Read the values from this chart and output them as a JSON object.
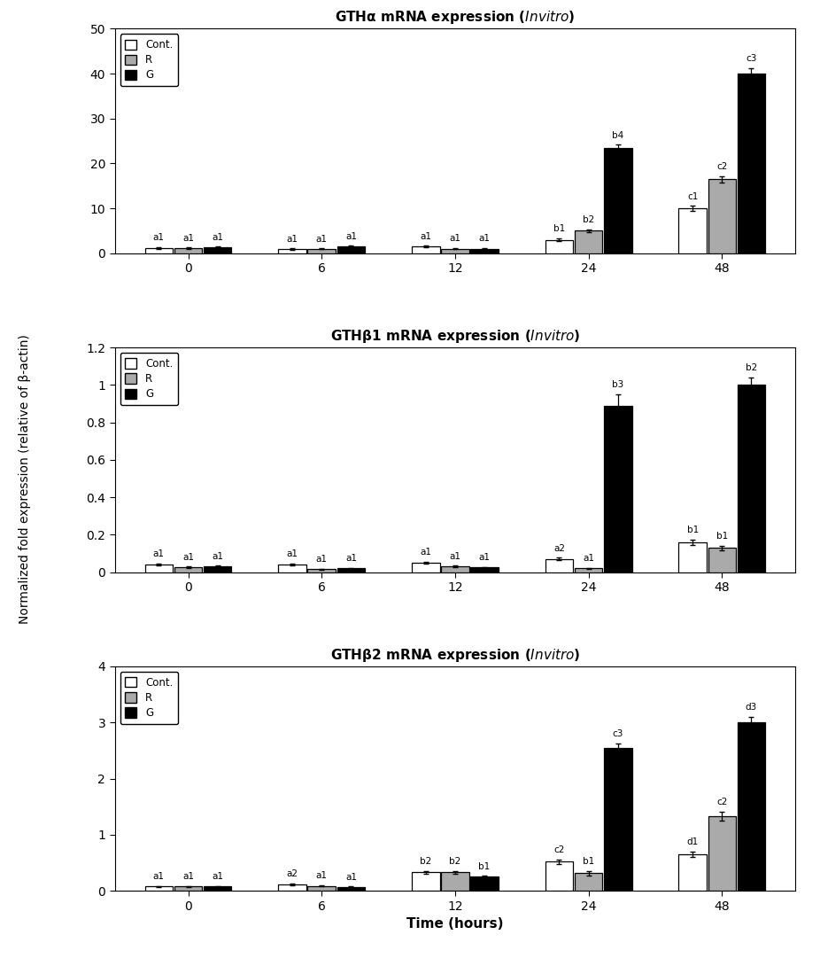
{
  "panels": [
    {
      "title_prefix": "GTHα mRNA expression (",
      "title_suffix": "In vitro",
      "title_end": ")",
      "ylim": [
        0,
        50
      ],
      "yticks": [
        0,
        10,
        20,
        30,
        40,
        50
      ],
      "cont_values": [
        1.2,
        0.9,
        1.5,
        3.0,
        10.0
      ],
      "cont_errors": [
        0.2,
        0.15,
        0.2,
        0.3,
        0.6
      ],
      "r_values": [
        1.1,
        1.0,
        1.0,
        5.0,
        16.5
      ],
      "r_errors": [
        0.15,
        0.1,
        0.15,
        0.35,
        0.7
      ],
      "g_values": [
        1.3,
        1.5,
        1.0,
        23.5,
        40.0
      ],
      "g_errors": [
        0.2,
        0.2,
        0.15,
        0.7,
        1.2
      ],
      "cont_labels": [
        "a1",
        "a1",
        "a1",
        "b1",
        "c1"
      ],
      "r_labels": [
        "a1",
        "a1",
        "a1",
        "b2",
        "c2"
      ],
      "g_labels": [
        "a1",
        "a1",
        "a1",
        "b4",
        "c3"
      ]
    },
    {
      "title_prefix": "GTHβ1 mRNA expression (",
      "title_suffix": "In vitro",
      "title_end": ")",
      "ylim": [
        0,
        1.2
      ],
      "yticks": [
        0,
        0.2,
        0.4,
        0.6,
        0.8,
        1.0,
        1.2
      ],
      "cont_values": [
        0.04,
        0.04,
        0.05,
        0.07,
        0.16
      ],
      "cont_errors": [
        0.005,
        0.005,
        0.006,
        0.008,
        0.015
      ],
      "r_values": [
        0.025,
        0.015,
        0.03,
        0.02,
        0.13
      ],
      "r_errors": [
        0.004,
        0.003,
        0.004,
        0.003,
        0.012
      ],
      "g_values": [
        0.03,
        0.02,
        0.025,
        0.89,
        1.0
      ],
      "g_errors": [
        0.004,
        0.003,
        0.003,
        0.06,
        0.04
      ],
      "cont_labels": [
        "a1",
        "a1",
        "a1",
        "a2",
        "b1"
      ],
      "r_labels": [
        "a1",
        "a1",
        "a1",
        "a1",
        "b1"
      ],
      "g_labels": [
        "a1",
        "a1",
        "a1",
        "b3",
        "b2"
      ]
    },
    {
      "title_prefix": "GTHβ2 mRNA expression (",
      "title_suffix": "In vitro",
      "title_end": ")",
      "ylim": [
        0,
        4
      ],
      "yticks": [
        0,
        1,
        2,
        3,
        4
      ],
      "cont_values": [
        0.08,
        0.12,
        0.33,
        0.52,
        0.65
      ],
      "cont_errors": [
        0.01,
        0.015,
        0.03,
        0.04,
        0.05
      ],
      "r_values": [
        0.08,
        0.09,
        0.33,
        0.32,
        1.33
      ],
      "r_errors": [
        0.01,
        0.012,
        0.03,
        0.04,
        0.08
      ],
      "g_values": [
        0.08,
        0.07,
        0.25,
        2.55,
        3.0
      ],
      "g_errors": [
        0.01,
        0.01,
        0.02,
        0.08,
        0.1
      ],
      "cont_labels": [
        "a1",
        "a2",
        "b2",
        "c2",
        "d1"
      ],
      "r_labels": [
        "a1",
        "a1",
        "b2",
        "b1",
        "c2"
      ],
      "g_labels": [
        "a1",
        "a1",
        "b1",
        "c3",
        "d3"
      ]
    }
  ],
  "legend_labels": [
    "Cont.",
    "R",
    "G"
  ],
  "bar_colors": [
    "white",
    "#aaaaaa",
    "black"
  ],
  "bar_edgecolor": "black",
  "time_labels": [
    "0",
    "6",
    "12",
    "24",
    "48"
  ],
  "xlabel": "Time (hours)",
  "ylabel": "Normalized fold expression (relative of β-actin)",
  "bar_width": 0.22
}
